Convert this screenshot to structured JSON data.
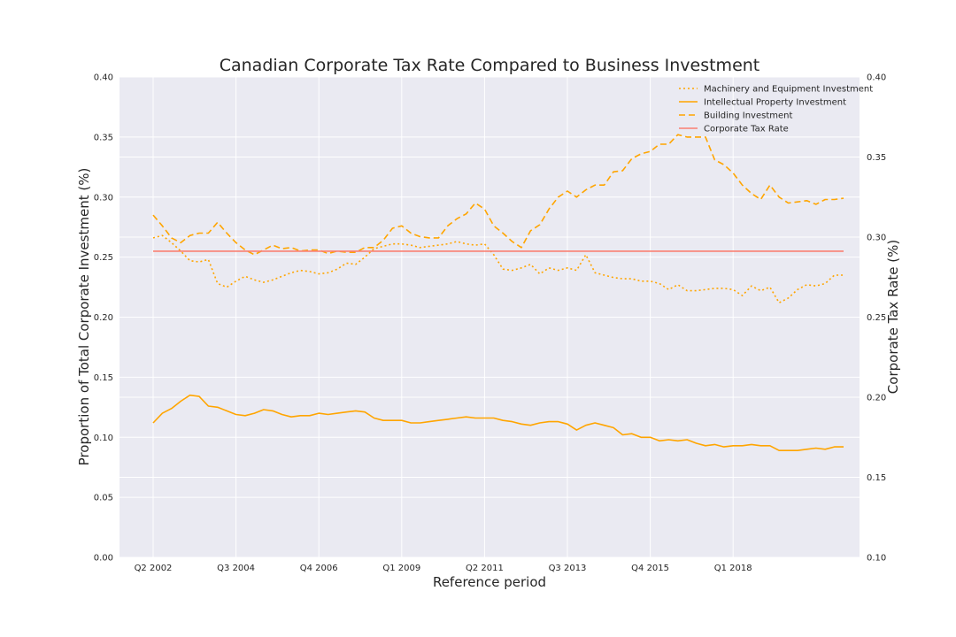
{
  "chart_data": {
    "type": "line",
    "title": "Canadian Corporate Tax Rate Compared to Business Investment",
    "xlabel": "Reference period",
    "ylabel_left": "Proportion of Total Corporate Investment (%)",
    "ylabel_right": "Corporate Tax Rate (%)",
    "x_start_quarter": "Q2 2002",
    "x_tick_labels": [
      "Q2 2002",
      "Q3 2004",
      "Q4 2006",
      "Q1 2009",
      "Q2 2011",
      "Q3 2013",
      "Q4 2015",
      "Q1 2018"
    ],
    "ylim_left": [
      0.0,
      0.4
    ],
    "ylim_right": [
      0.1,
      0.4
    ],
    "y_ticks_left": [
      "0.00",
      "0.05",
      "0.10",
      "0.15",
      "0.20",
      "0.25",
      "0.30",
      "0.35",
      "0.40"
    ],
    "y_ticks_right": [
      "0.10",
      "0.15",
      "0.20",
      "0.25",
      "0.30",
      "0.35",
      "0.40"
    ],
    "grid": true,
    "legend_position": "top-right",
    "series": [
      {
        "name": "Machinery and Equipment Investment",
        "axis": "left",
        "style": "dotted",
        "color": "#FFA500",
        "values": [
          0.266,
          0.268,
          0.262,
          0.255,
          0.247,
          0.246,
          0.248,
          0.228,
          0.225,
          0.23,
          0.234,
          0.231,
          0.229,
          0.231,
          0.234,
          0.237,
          0.239,
          0.238,
          0.236,
          0.237,
          0.24,
          0.245,
          0.244,
          0.25,
          0.257,
          0.259,
          0.261,
          0.261,
          0.26,
          0.258,
          0.259,
          0.26,
          0.261,
          0.263,
          0.261,
          0.26,
          0.261,
          0.252,
          0.24,
          0.239,
          0.241,
          0.244,
          0.236,
          0.241,
          0.239,
          0.241,
          0.239,
          0.252,
          0.237,
          0.235,
          0.233,
          0.232,
          0.232,
          0.23,
          0.23,
          0.228,
          0.223,
          0.227,
          0.222,
          0.222,
          0.223,
          0.224,
          0.224,
          0.223,
          0.218,
          0.226,
          0.222,
          0.225,
          0.212,
          0.216,
          0.223,
          0.227,
          0.226,
          0.228,
          0.235,
          0.235
        ]
      },
      {
        "name": "Intellectual Property Investment",
        "axis": "left",
        "style": "solid",
        "color": "#FFA500",
        "values": [
          0.112,
          0.12,
          0.124,
          0.13,
          0.135,
          0.134,
          0.126,
          0.125,
          0.122,
          0.119,
          0.118,
          0.12,
          0.123,
          0.122,
          0.119,
          0.117,
          0.118,
          0.118,
          0.12,
          0.119,
          0.12,
          0.121,
          0.122,
          0.121,
          0.116,
          0.114,
          0.114,
          0.114,
          0.112,
          0.112,
          0.113,
          0.114,
          0.115,
          0.116,
          0.117,
          0.116,
          0.116,
          0.116,
          0.114,
          0.113,
          0.111,
          0.11,
          0.112,
          0.113,
          0.113,
          0.111,
          0.106,
          0.11,
          0.112,
          0.11,
          0.108,
          0.102,
          0.103,
          0.1,
          0.1,
          0.097,
          0.098,
          0.097,
          0.098,
          0.095,
          0.093,
          0.094,
          0.092,
          0.093,
          0.093,
          0.094,
          0.093,
          0.093,
          0.089,
          0.089,
          0.089,
          0.09,
          0.091,
          0.09,
          0.092,
          0.092
        ]
      },
      {
        "name": "Building Investment",
        "axis": "left",
        "style": "dashed",
        "color": "#FFA500",
        "values": [
          0.285,
          0.276,
          0.266,
          0.262,
          0.268,
          0.27,
          0.27,
          0.279,
          0.27,
          0.262,
          0.256,
          0.252,
          0.256,
          0.26,
          0.257,
          0.258,
          0.255,
          0.256,
          0.256,
          0.253,
          0.255,
          0.254,
          0.254,
          0.258,
          0.258,
          0.264,
          0.274,
          0.276,
          0.27,
          0.267,
          0.266,
          0.266,
          0.276,
          0.282,
          0.286,
          0.295,
          0.29,
          0.276,
          0.27,
          0.263,
          0.258,
          0.272,
          0.277,
          0.29,
          0.3,
          0.305,
          0.3,
          0.306,
          0.31,
          0.31,
          0.321,
          0.322,
          0.332,
          0.336,
          0.338,
          0.344,
          0.344,
          0.352,
          0.35,
          0.35,
          0.35,
          0.331,
          0.327,
          0.32,
          0.31,
          0.303,
          0.298,
          0.31,
          0.3,
          0.295,
          0.296,
          0.297,
          0.294,
          0.298,
          0.298,
          0.299
        ]
      },
      {
        "name": "Corporate Tax Rate",
        "axis": "right",
        "style": "solid",
        "color": "#FA8072",
        "values": [
          0.2912,
          0.2912,
          0.2912,
          0.2912,
          0.2912,
          0.2912,
          0.2912,
          0.2912,
          0.2912,
          0.2912,
          0.2912,
          0.2912,
          0.2912,
          0.2912,
          0.2912,
          0.2912,
          0.2912,
          0.2912,
          0.2912,
          0.2912,
          0.2912,
          0.2912,
          0.2912,
          0.2912,
          0.2912,
          0.2912,
          0.2912,
          0.2912,
          0.2912,
          0.2912,
          0.2912,
          0.2912,
          0.2912,
          0.2912,
          0.2912,
          0.2912,
          0.2912,
          0.2912,
          0.2912,
          0.2912,
          0.2912,
          0.2912,
          0.2912,
          0.2912,
          0.2912,
          0.2912,
          0.2912,
          0.2912,
          0.2912,
          0.2912,
          0.2912,
          0.2912,
          0.2912,
          0.2912,
          0.2912,
          0.2912,
          0.2912,
          0.2912,
          0.2912,
          0.2912,
          0.2912,
          0.2912,
          0.2912,
          0.2912,
          0.2912,
          0.2912,
          0.2912,
          0.2912,
          0.2912,
          0.2912,
          0.2912,
          0.2912,
          0.2912,
          0.2912,
          0.2912,
          0.2912
        ]
      }
    ]
  }
}
